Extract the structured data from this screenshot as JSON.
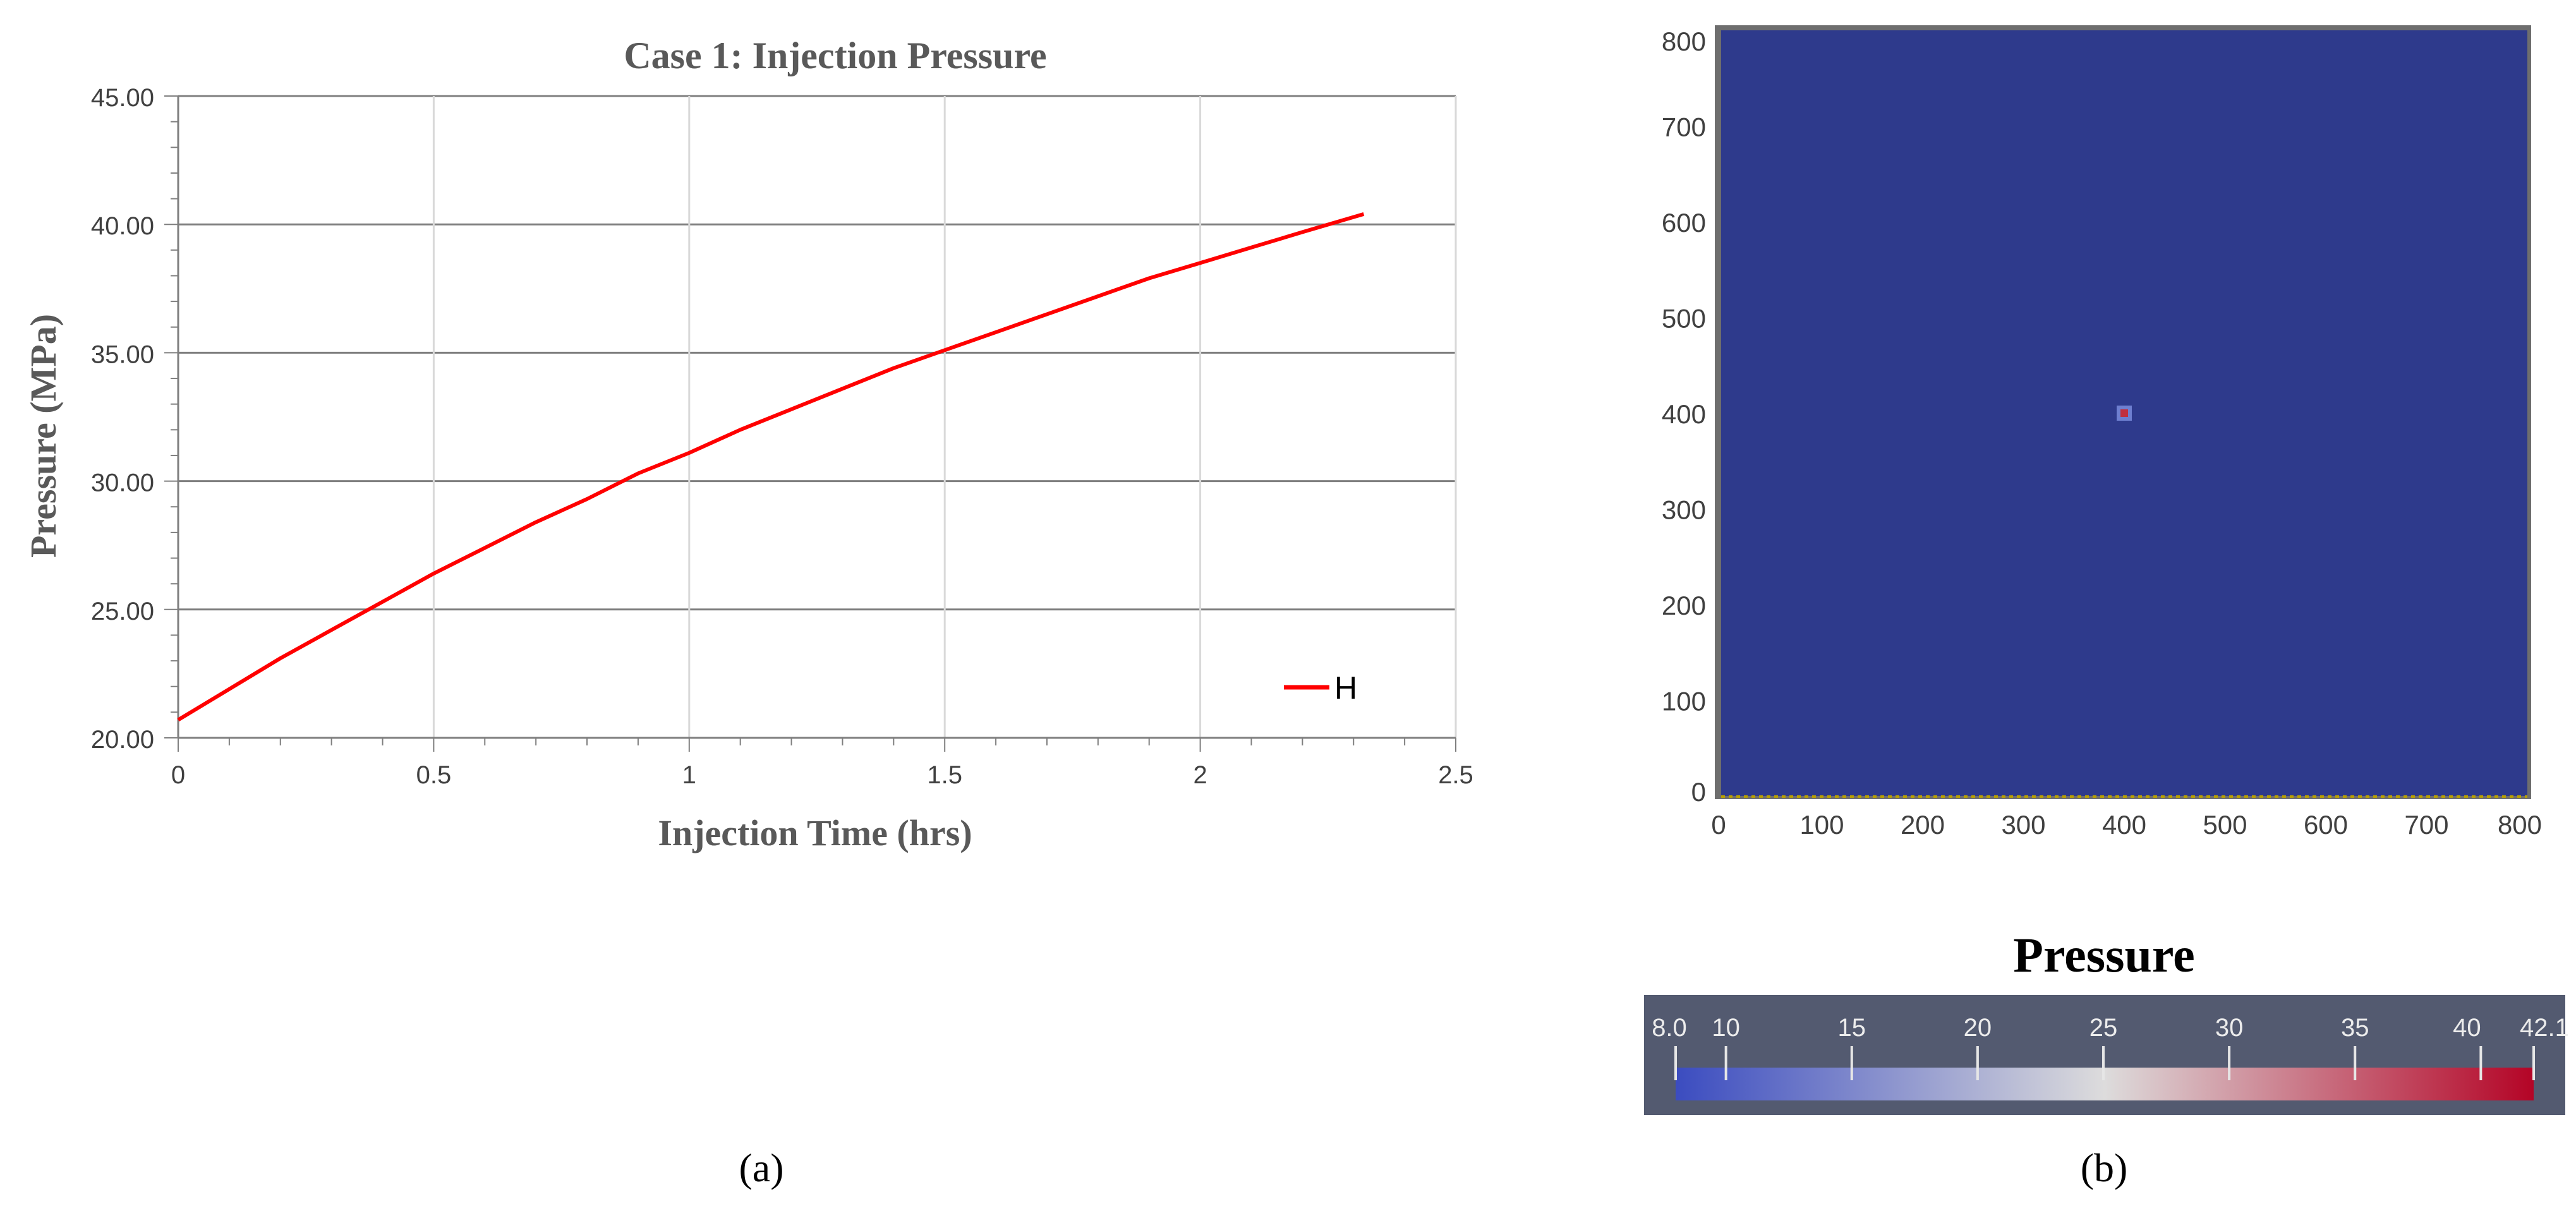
{
  "chart_data": [
    {
      "type": "line",
      "panel_label": "(a)",
      "title": "Case 1:  Injection Pressure",
      "xlabel": "Injection Time (hrs)",
      "ylabel": "Pressure (MPa)",
      "xlim": [
        0,
        2.5
      ],
      "ylim": [
        20,
        45
      ],
      "x_ticks": [
        "0",
        "0.5",
        "1",
        "1.5",
        "2",
        "2.5"
      ],
      "y_ticks": [
        "20.00",
        "25.00",
        "30.00",
        "35.00",
        "40.00",
        "45.00"
      ],
      "grid": true,
      "legend_position": "bottom-right",
      "series": [
        {
          "name": "H",
          "color": "#ff0000",
          "x": [
            0,
            0.1,
            0.2,
            0.3,
            0.4,
            0.5,
            0.6,
            0.7,
            0.8,
            0.9,
            1.0,
            1.1,
            1.2,
            1.3,
            1.4,
            1.5,
            1.6,
            1.7,
            1.8,
            1.9,
            2.0,
            2.1,
            2.2,
            2.32
          ],
          "y": [
            20.7,
            21.9,
            23.1,
            24.2,
            25.3,
            26.4,
            27.4,
            28.4,
            29.3,
            30.3,
            31.1,
            32.0,
            32.8,
            33.6,
            34.4,
            35.1,
            35.8,
            36.5,
            37.2,
            37.9,
            38.5,
            39.1,
            39.7,
            40.4
          ]
        }
      ]
    },
    {
      "type": "heatmap",
      "panel_label": "(b)",
      "title": "",
      "xlim": [
        0,
        800
      ],
      "ylim": [
        0,
        800
      ],
      "x_ticks": [
        "0",
        "100",
        "200",
        "300",
        "400",
        "500",
        "600",
        "700",
        "800"
      ],
      "y_ticks": [
        "0",
        "100",
        "200",
        "300",
        "400",
        "500",
        "600",
        "700",
        "800"
      ],
      "field_color": "#2e3a8c",
      "hotspot": {
        "x": 400,
        "y": 400
      },
      "colorbar": {
        "title": "Pressure",
        "min": 8.0,
        "max": 42.1,
        "ticks": [
          "8.0",
          "10",
          "15",
          "20",
          "25",
          "30",
          "35",
          "40",
          "42.1"
        ],
        "tick_values": [
          8.0,
          10,
          15,
          20,
          25,
          30,
          35,
          40,
          42.1
        ],
        "colors": [
          "#3b4cc0",
          "#dddcdc",
          "#b40426"
        ]
      }
    }
  ]
}
